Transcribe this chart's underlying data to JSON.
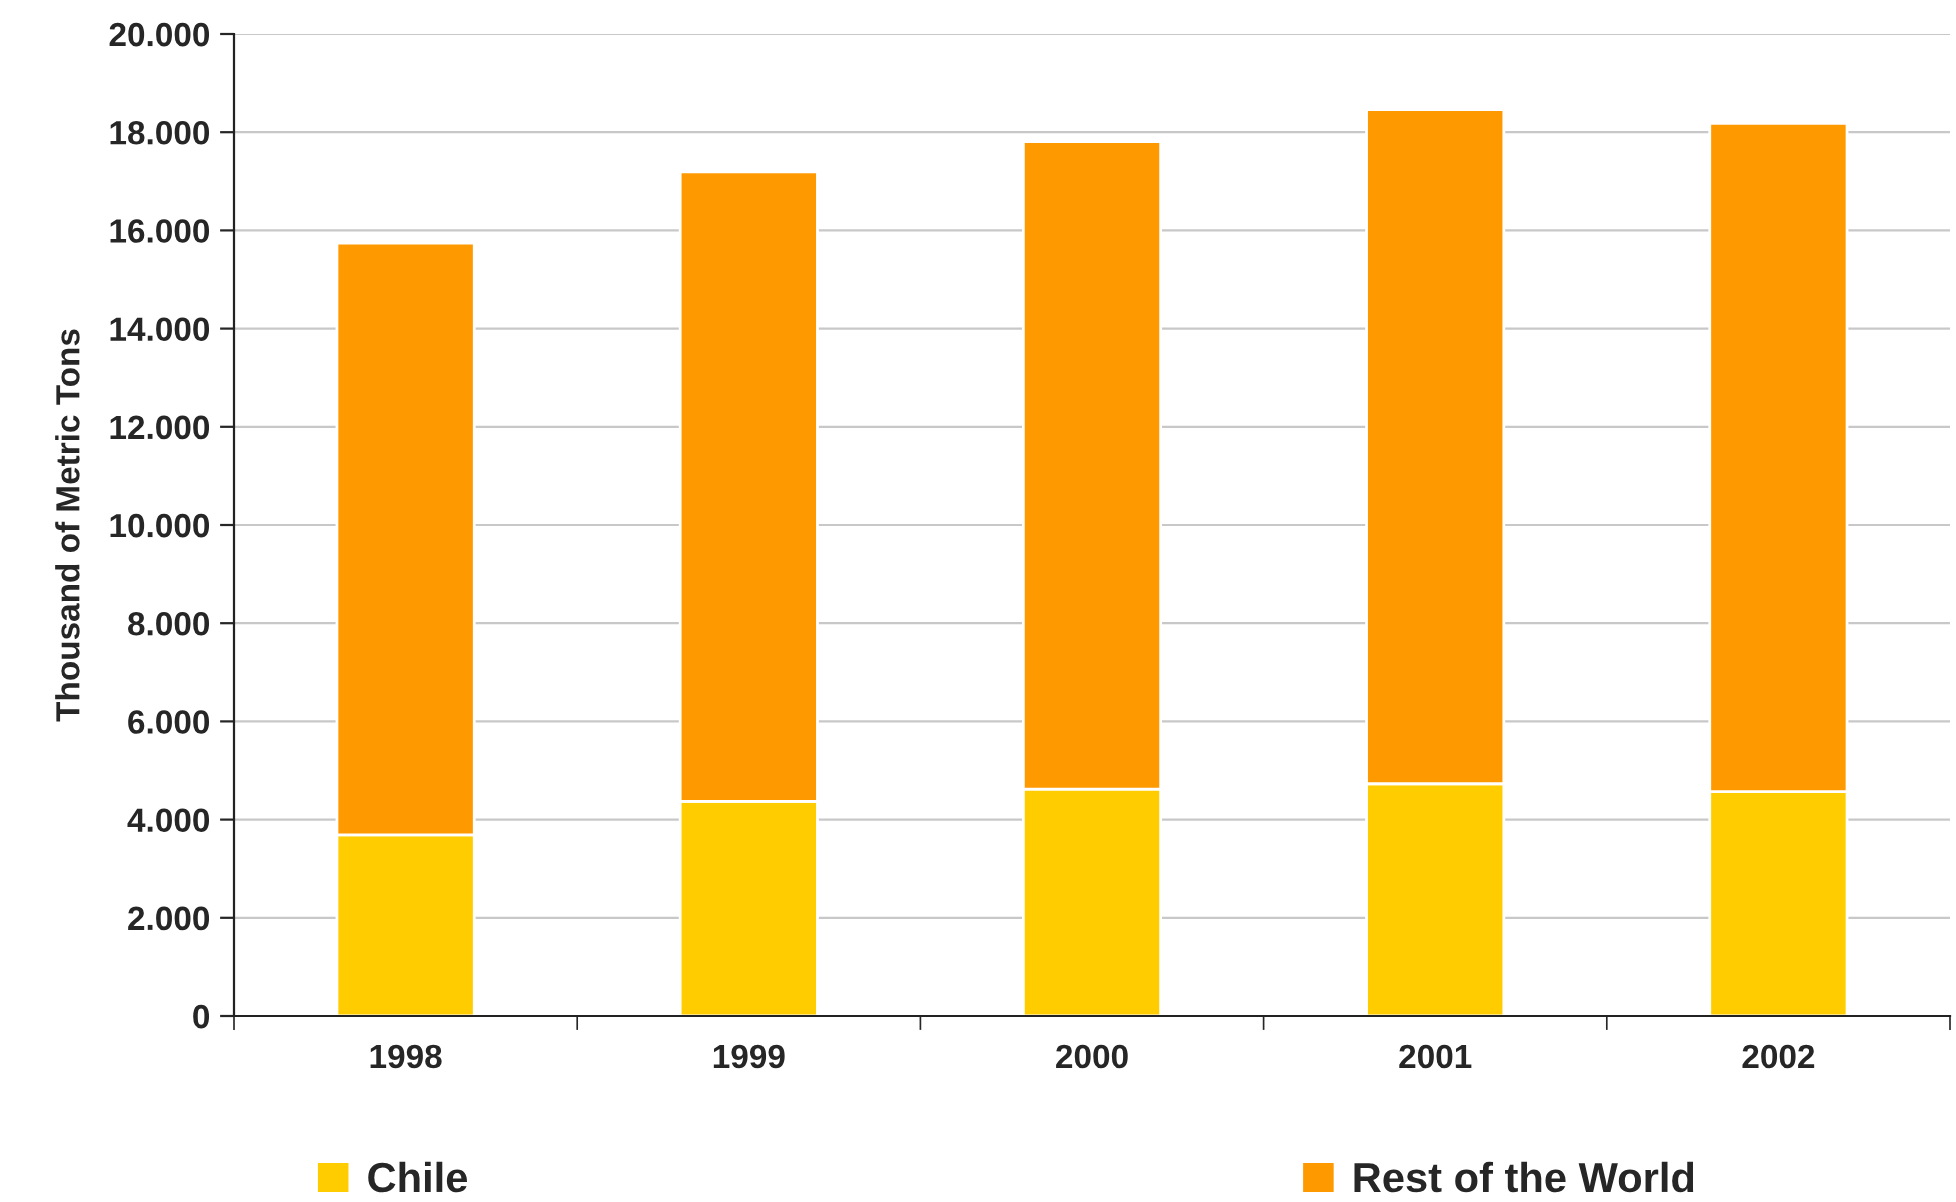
{
  "chart_data": {
    "type": "bar",
    "stacked": true,
    "ylabel": "Thousand of Metric Tons",
    "categories": [
      "1998",
      "1999",
      "2000",
      "2001",
      "2002"
    ],
    "series": [
      {
        "name": "Chile",
        "color": "#ffcc00",
        "values": [
          3690,
          4370,
          4620,
          4730,
          4570
        ]
      },
      {
        "name": "Rest of the World",
        "color": "#ff9900",
        "values": [
          12050,
          12820,
          13190,
          13730,
          13610
        ]
      }
    ],
    "ylim": [
      0,
      20000
    ],
    "yticks": [
      0,
      {
        "value": 2000,
        "label": "2.000"
      },
      {
        "value": 4000,
        "label": "4.000"
      },
      {
        "value": 6000,
        "label": "6.000"
      },
      {
        "value": 8000,
        "label": "8.000"
      },
      {
        "value": 10000,
        "label": "10.000"
      },
      {
        "value": 12000,
        "label": "12.000"
      },
      {
        "value": 14000,
        "label": "14.000"
      },
      {
        "value": 16000,
        "label": "16.000"
      },
      {
        "value": 18000,
        "label": "18.000"
      },
      {
        "value": 20000,
        "label": "20.000"
      }
    ],
    "grid": "y",
    "legend": "bottom"
  }
}
